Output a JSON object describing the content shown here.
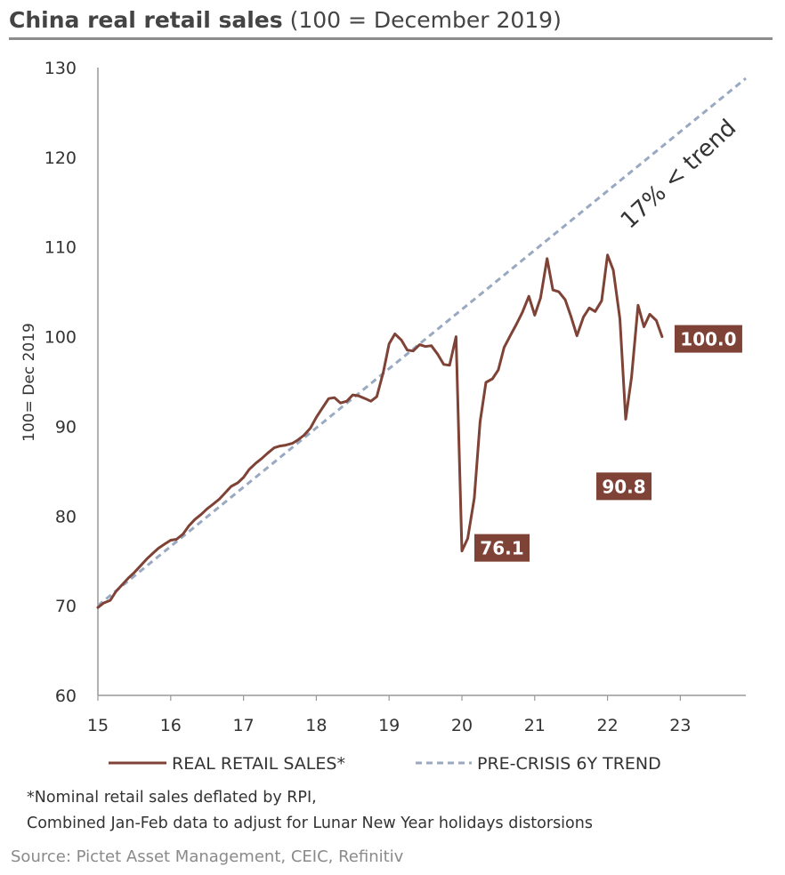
{
  "title": {
    "bold": "China real retail sales",
    "rest": " (100 = December 2019)"
  },
  "colors": {
    "actual": "#7f4236",
    "trend": "#98a9c1",
    "label_bg": "#7f4236",
    "axis": "#999999"
  },
  "chart_data": {
    "type": "line",
    "ylabel": "100= Dec 2019",
    "ylim": [
      60,
      130
    ],
    "yticks": [
      60,
      70,
      80,
      90,
      100,
      110,
      120,
      130
    ],
    "xlim": [
      15,
      23.9
    ],
    "xticks": [
      15,
      16,
      17,
      18,
      19,
      20,
      21,
      22,
      23
    ],
    "xtick_labels": [
      "15",
      "16",
      "17",
      "18",
      "19",
      "20",
      "21",
      "22",
      "23"
    ],
    "grid": false,
    "legend_position": "bottom",
    "series": [
      {
        "name": "REAL RETAIL SALES*",
        "style": "solid",
        "points": [
          [
            15.0,
            69.8
          ],
          [
            15.08,
            70.3
          ],
          [
            15.17,
            70.6
          ],
          [
            15.25,
            71.6
          ],
          [
            15.33,
            72.3
          ],
          [
            15.42,
            73.1
          ],
          [
            15.5,
            73.7
          ],
          [
            15.58,
            74.4
          ],
          [
            15.67,
            75.2
          ],
          [
            15.75,
            75.8
          ],
          [
            15.83,
            76.4
          ],
          [
            15.92,
            76.9
          ],
          [
            16.0,
            77.3
          ],
          [
            16.08,
            77.4
          ],
          [
            16.17,
            78.0
          ],
          [
            16.25,
            78.9
          ],
          [
            16.33,
            79.6
          ],
          [
            16.42,
            80.2
          ],
          [
            16.5,
            80.8
          ],
          [
            16.58,
            81.3
          ],
          [
            16.67,
            81.9
          ],
          [
            16.75,
            82.6
          ],
          [
            16.83,
            83.3
          ],
          [
            16.92,
            83.7
          ],
          [
            17.0,
            84.3
          ],
          [
            17.08,
            85.2
          ],
          [
            17.17,
            85.9
          ],
          [
            17.25,
            86.4
          ],
          [
            17.33,
            87.0
          ],
          [
            17.42,
            87.6
          ],
          [
            17.5,
            87.8
          ],
          [
            17.58,
            87.9
          ],
          [
            17.67,
            88.1
          ],
          [
            17.75,
            88.5
          ],
          [
            17.83,
            89.0
          ],
          [
            17.92,
            89.8
          ],
          [
            18.0,
            91.0
          ],
          [
            18.08,
            92.0
          ],
          [
            18.17,
            93.1
          ],
          [
            18.25,
            93.2
          ],
          [
            18.33,
            92.6
          ],
          [
            18.42,
            92.8
          ],
          [
            18.5,
            93.5
          ],
          [
            18.58,
            93.4
          ],
          [
            18.67,
            93.1
          ],
          [
            18.75,
            92.8
          ],
          [
            18.83,
            93.3
          ],
          [
            18.92,
            96.0
          ],
          [
            19.0,
            99.2
          ],
          [
            19.08,
            100.3
          ],
          [
            19.17,
            99.6
          ],
          [
            19.25,
            98.5
          ],
          [
            19.33,
            98.4
          ],
          [
            19.42,
            99.1
          ],
          [
            19.5,
            98.9
          ],
          [
            19.58,
            99.0
          ],
          [
            19.67,
            98.0
          ],
          [
            19.75,
            96.9
          ],
          [
            19.83,
            96.8
          ],
          [
            19.92,
            100.0
          ],
          [
            20.0,
            76.1
          ],
          [
            20.08,
            77.5
          ],
          [
            20.17,
            82.0
          ],
          [
            20.25,
            90.5
          ],
          [
            20.33,
            94.9
          ],
          [
            20.42,
            95.3
          ],
          [
            20.5,
            96.3
          ],
          [
            20.58,
            98.8
          ],
          [
            20.67,
            100.2
          ],
          [
            20.75,
            101.4
          ],
          [
            20.83,
            102.7
          ],
          [
            20.92,
            104.5
          ],
          [
            21.0,
            102.4
          ],
          [
            21.08,
            104.3
          ],
          [
            21.17,
            108.7
          ],
          [
            21.25,
            105.2
          ],
          [
            21.33,
            105.0
          ],
          [
            21.42,
            104.1
          ],
          [
            21.5,
            102.2
          ],
          [
            21.58,
            100.1
          ],
          [
            21.67,
            102.2
          ],
          [
            21.75,
            103.2
          ],
          [
            21.83,
            102.8
          ],
          [
            21.92,
            104.0
          ],
          [
            22.0,
            109.1
          ],
          [
            22.08,
            107.4
          ],
          [
            22.17,
            102.0
          ],
          [
            22.25,
            90.8
          ],
          [
            22.33,
            95.5
          ],
          [
            22.42,
            103.5
          ],
          [
            22.5,
            101.1
          ],
          [
            22.58,
            102.5
          ],
          [
            22.67,
            101.8
          ],
          [
            22.75,
            100.0
          ]
        ]
      },
      {
        "name": "PRE-CRISIS 6Y TREND",
        "style": "dashed",
        "points": [
          [
            15.0,
            70.0
          ],
          [
            23.9,
            128.8
          ]
        ]
      }
    ],
    "annotations": [
      {
        "text": "76.1",
        "x": 20.0,
        "y": 76.1
      },
      {
        "text": "90.8",
        "x": 22.25,
        "y": 90.8
      },
      {
        "text": "100.0",
        "x": 22.75,
        "y": 100.0
      }
    ],
    "trend_label": "17% < trend"
  },
  "footnotes": {
    "line1": "*Nominal retail sales deflated by RPI,",
    "line2": "Combined Jan-Feb data to adjust for Lunar New Year holidays distorsions"
  },
  "source": "Source: Pictet Asset Management, CEIC, Refinitiv"
}
